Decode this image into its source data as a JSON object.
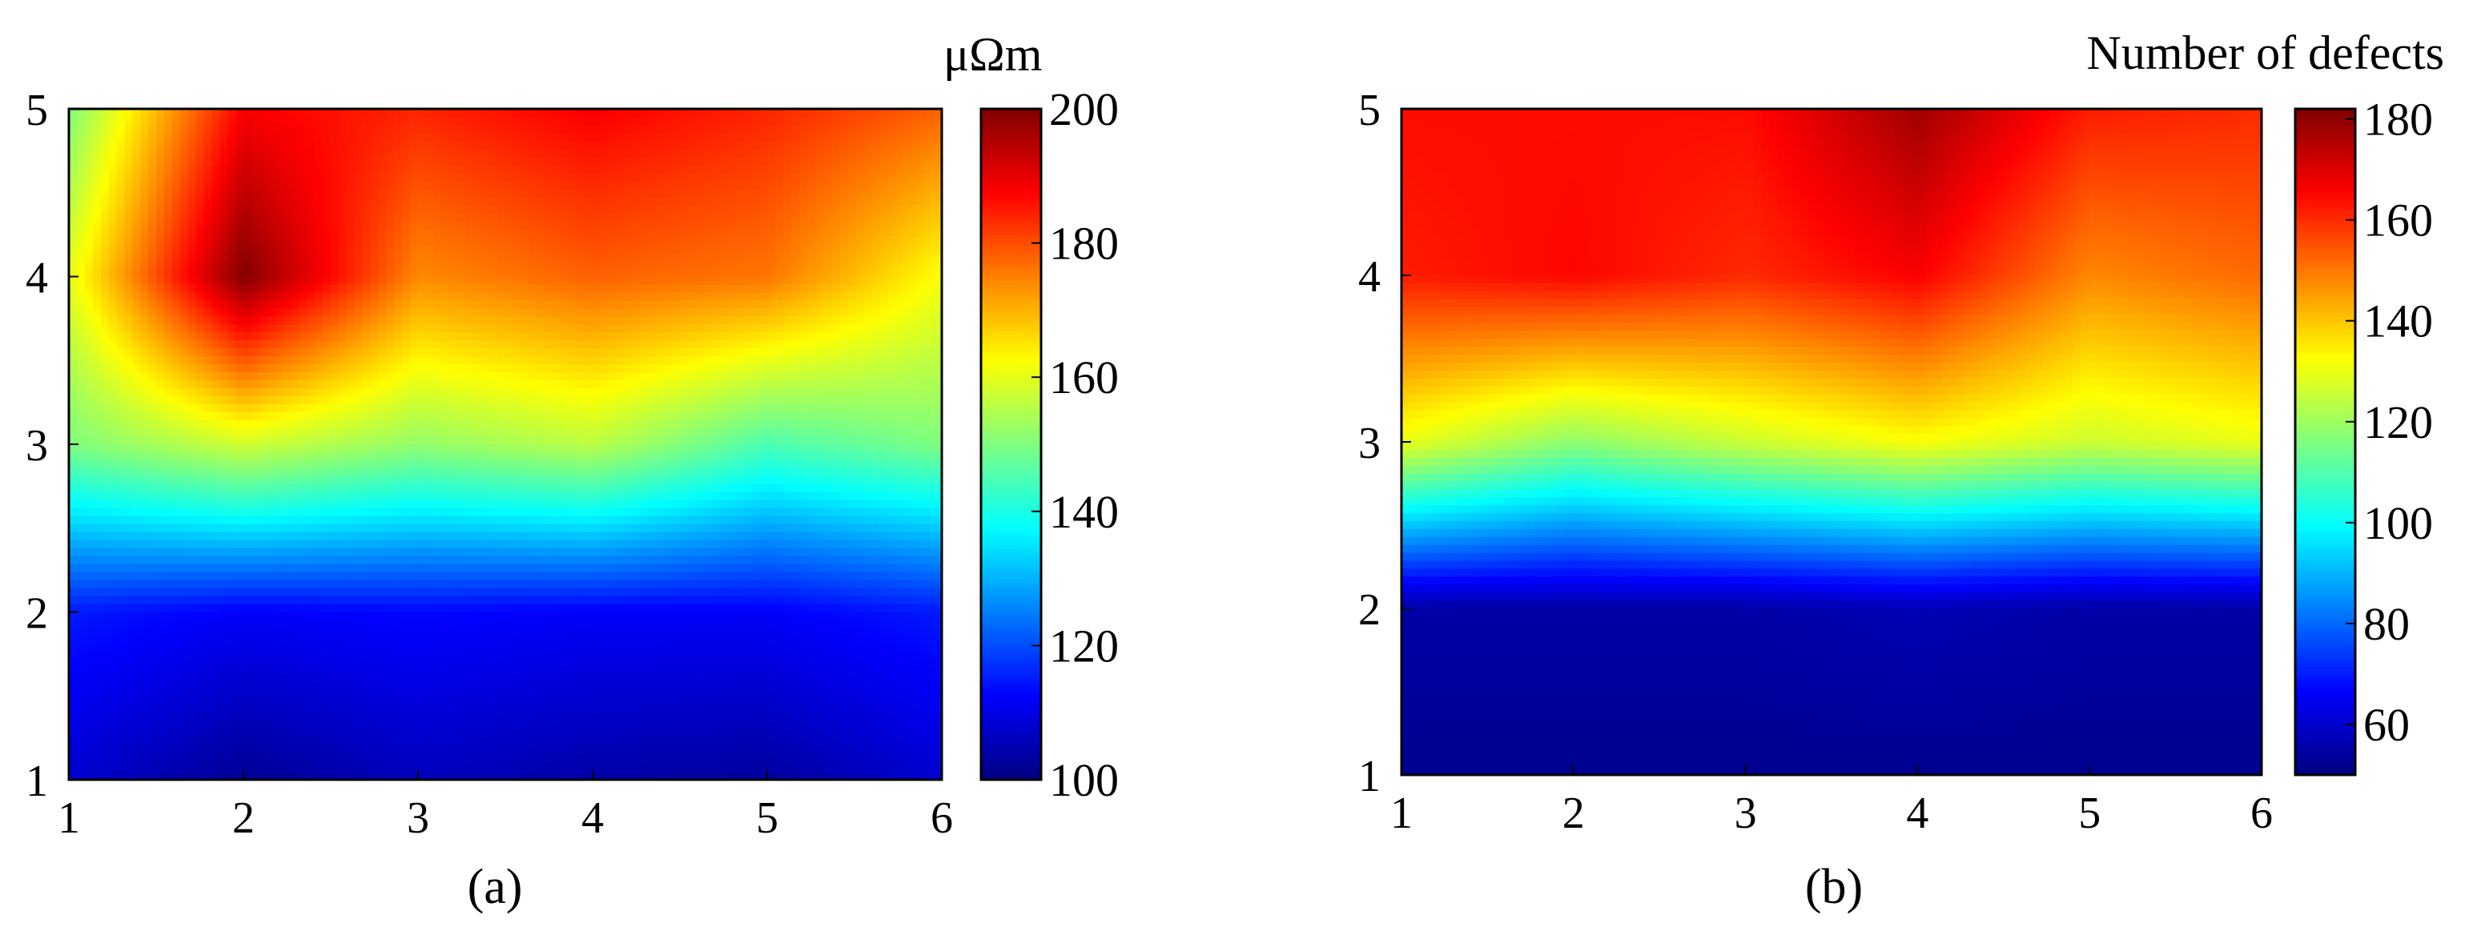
{
  "figure": {
    "panel_labels": [
      "(a)",
      "(b)"
    ]
  },
  "chart_data": [
    {
      "type": "heatmap",
      "caption": "(a)",
      "title": "",
      "xlabel": "",
      "ylabel": "",
      "x": [
        1,
        2,
        3,
        4,
        5,
        6
      ],
      "y": [
        1,
        2,
        3,
        4,
        5
      ],
      "xlim": [
        1,
        6
      ],
      "ylim": [
        1,
        5
      ],
      "x_ticks": [
        "1",
        "2",
        "3",
        "4",
        "5",
        "6"
      ],
      "y_ticks": [
        "1",
        "2",
        "3",
        "4",
        "5"
      ],
      "z": [
        [
          108,
          102,
          106,
          104,
          103,
          108
        ],
        [
          115,
          112,
          113,
          112,
          112,
          115
        ],
        [
          150,
          158,
          152,
          156,
          145,
          150
        ],
        [
          160,
          200,
          174,
          178,
          176,
          162
        ],
        [
          150,
          188,
          184,
          188,
          184,
          178
        ]
      ],
      "colorbar": {
        "label": "μΩm",
        "min": 100,
        "max": 200,
        "ticks": [
          "100",
          "120",
          "140",
          "160",
          "180",
          "200"
        ],
        "colormap": "jet"
      },
      "grid": false
    },
    {
      "type": "heatmap",
      "caption": "(b)",
      "title": "",
      "xlabel": "",
      "ylabel": "",
      "x": [
        1,
        2,
        3,
        4,
        5,
        6
      ],
      "y": [
        1,
        2,
        3,
        4,
        5
      ],
      "xlim": [
        1,
        6
      ],
      "ylim": [
        1,
        5
      ],
      "x_ticks": [
        "1",
        "2",
        "3",
        "4",
        "5",
        "6"
      ],
      "y_ticks": [
        "1",
        "2",
        "3",
        "4",
        "5"
      ],
      "z": [
        [
          52,
          52,
          52,
          52,
          52,
          52
        ],
        [
          55,
          55,
          55,
          57,
          55,
          55
        ],
        [
          130,
          118,
          126,
          132,
          126,
          130
        ],
        [
          162,
          165,
          160,
          166,
          148,
          152
        ],
        [
          164,
          164,
          164,
          178,
          162,
          160
        ]
      ],
      "colorbar": {
        "label": "Number of defects",
        "min": 50,
        "max": 182,
        "ticks": [
          "60",
          "80",
          "100",
          "120",
          "140",
          "160",
          "180"
        ],
        "colormap": "jet"
      },
      "grid": false
    }
  ]
}
